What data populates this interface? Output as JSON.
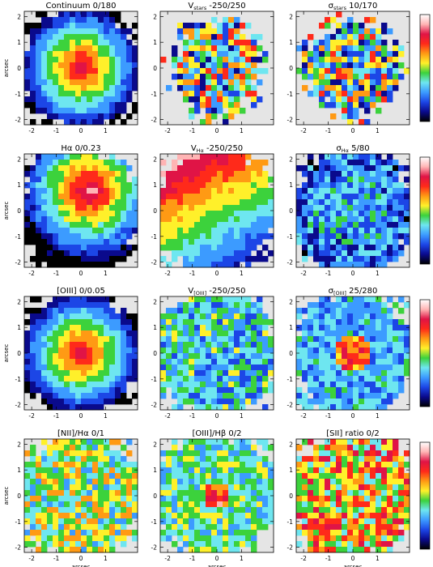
{
  "figure": {
    "xlabel": "arcsec",
    "ylabel": "arcsec",
    "x_ticks": [
      "-2",
      "-1",
      "0",
      "1"
    ],
    "y_ticks": [
      "2",
      "1",
      "0",
      "-1",
      "-2"
    ],
    "colormap": [
      "#000000",
      "#0a0a8c",
      "#1c46e6",
      "#3c9bff",
      "#6ee6f0",
      "#3cd23c",
      "#fff02a",
      "#ff9a14",
      "#ff2a1a",
      "#e01446",
      "#ffb4b4",
      "#ffffff"
    ],
    "background": "#e5e5e5"
  },
  "panels": [
    {
      "title": "Continuum",
      "range": "0/180",
      "pattern": "radial-center"
    },
    {
      "title": "V",
      "sub": "stars",
      "range": "-250/250",
      "pattern": "noisy-mid"
    },
    {
      "title": "σ",
      "sub": "stars",
      "range": "10/170",
      "pattern": "noisy-mid"
    },
    {
      "title": "Hα",
      "range": "0/0.23",
      "pattern": "radial-offset"
    },
    {
      "title": "V",
      "sub": "Hα",
      "range": "-250/250",
      "pattern": "gradient-rotation"
    },
    {
      "title": "σ",
      "sub": "Hα",
      "range": "5/80",
      "pattern": "low-blue"
    },
    {
      "title": "[OIII]",
      "range": "0/0.05",
      "pattern": "radial-center"
    },
    {
      "title": "V",
      "sub": "[OIII]",
      "range": "-250/250",
      "pattern": "patchy-cyan"
    },
    {
      "title": "σ",
      "sub": "[OIII]",
      "range": "25/280",
      "pattern": "ring-center"
    },
    {
      "title": "[NII]/Hα",
      "range": "0/1",
      "pattern": "patchy-yellow"
    },
    {
      "title": "[OIII]/Hβ",
      "range": "0/2",
      "pattern": "patchy-cyan-center"
    },
    {
      "title": "[SII] ratio",
      "range": "0/2",
      "pattern": "patchy-red"
    }
  ],
  "chart_data": [
    {
      "type": "heatmap",
      "title": "Continuum 0/180",
      "xlabel": "",
      "ylabel": "arcsec",
      "xlim": [
        -2.3,
        2.3
      ],
      "ylim": [
        -2.2,
        2.2
      ],
      "range": [
        0,
        180
      ]
    },
    {
      "type": "heatmap",
      "title": "V_stars -250/250",
      "xlabel": "",
      "ylabel": "",
      "xlim": [
        -2.3,
        2.3
      ],
      "ylim": [
        -2.2,
        2.2
      ],
      "range": [
        -250,
        250
      ]
    },
    {
      "type": "heatmap",
      "title": "σ_stars 10/170",
      "xlabel": "",
      "ylabel": "",
      "xlim": [
        -2.3,
        2.3
      ],
      "ylim": [
        -2.2,
        2.2
      ],
      "range": [
        10,
        170
      ],
      "colorbar": true
    },
    {
      "type": "heatmap",
      "title": "Hα 0/0.23",
      "xlabel": "",
      "ylabel": "arcsec",
      "xlim": [
        -2.3,
        2.3
      ],
      "ylim": [
        -2.2,
        2.2
      ],
      "range": [
        0,
        0.23
      ]
    },
    {
      "type": "heatmap",
      "title": "V_Hα -250/250",
      "xlabel": "",
      "ylabel": "",
      "xlim": [
        -2.3,
        2.3
      ],
      "ylim": [
        -2.2,
        2.2
      ],
      "range": [
        -250,
        250
      ]
    },
    {
      "type": "heatmap",
      "title": "σ_Hα 5/80",
      "xlabel": "",
      "ylabel": "",
      "xlim": [
        -2.3,
        2.3
      ],
      "ylim": [
        -2.2,
        2.2
      ],
      "range": [
        5,
        80
      ],
      "colorbar": true
    },
    {
      "type": "heatmap",
      "title": "[OIII] 0/0.05",
      "xlabel": "",
      "ylabel": "arcsec",
      "xlim": [
        -2.3,
        2.3
      ],
      "ylim": [
        -2.2,
        2.2
      ],
      "range": [
        0,
        0.05
      ]
    },
    {
      "type": "heatmap",
      "title": "V_[OIII] -250/250",
      "xlabel": "",
      "ylabel": "",
      "xlim": [
        -2.3,
        2.3
      ],
      "ylim": [
        -2.2,
        2.2
      ],
      "range": [
        -250,
        250
      ]
    },
    {
      "type": "heatmap",
      "title": "σ_[OIII] 25/280",
      "xlabel": "",
      "ylabel": "",
      "xlim": [
        -2.3,
        2.3
      ],
      "ylim": [
        -2.2,
        2.2
      ],
      "range": [
        25,
        280
      ],
      "colorbar": true
    },
    {
      "type": "heatmap",
      "title": "[NII]/Hα 0/1",
      "xlabel": "arcsec",
      "ylabel": "arcsec",
      "xlim": [
        -2.3,
        2.3
      ],
      "ylim": [
        -2.2,
        2.2
      ],
      "range": [
        0,
        1
      ]
    },
    {
      "type": "heatmap",
      "title": "[OIII]/Hβ 0/2",
      "xlabel": "arcsec",
      "ylabel": "",
      "xlim": [
        -2.3,
        2.3
      ],
      "ylim": [
        -2.2,
        2.2
      ],
      "range": [
        0,
        2
      ]
    },
    {
      "type": "heatmap",
      "title": "[SII] ratio 0/2",
      "xlabel": "arcsec",
      "ylabel": "",
      "xlim": [
        -2.3,
        2.3
      ],
      "ylim": [
        -2.2,
        2.2
      ],
      "range": [
        0,
        2
      ],
      "colorbar": true
    }
  ]
}
